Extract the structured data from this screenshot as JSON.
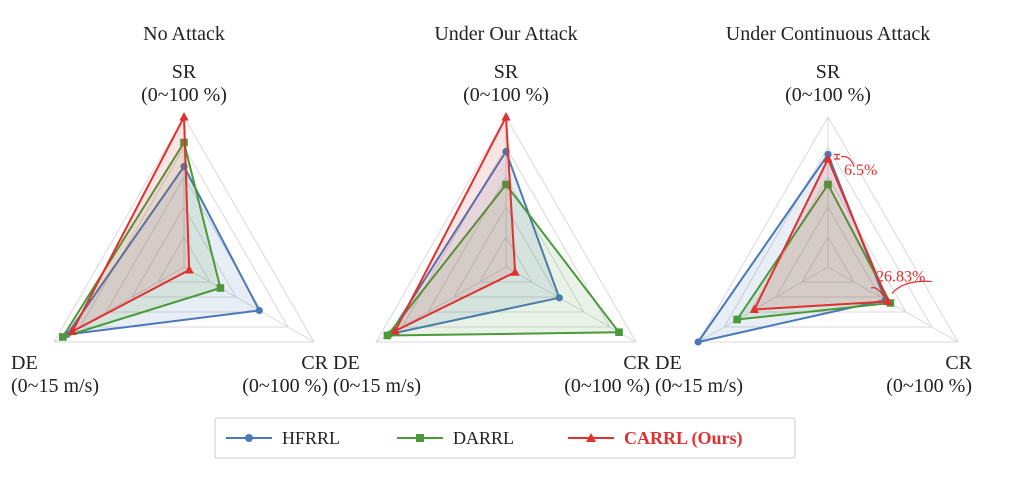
{
  "chart_data": [
    {
      "type": "radar",
      "title": "No Attack",
      "axes": [
        {
          "key": "SR",
          "name": "SR",
          "range_label": "(0~100 %)",
          "range": [
            0,
            100
          ]
        },
        {
          "key": "CR",
          "name": "CR",
          "range_label": "(0~100 %)",
          "range": [
            0,
            100
          ]
        },
        {
          "key": "DE",
          "name": "DE",
          "range_label": "(0~15 m/s)",
          "range": [
            0,
            15
          ]
        }
      ],
      "series": [
        {
          "name": "HFRRL",
          "SR": 67,
          "CR": 58,
          "DE": 13.5
        },
        {
          "name": "DARRL",
          "SR": 83,
          "CR": 28,
          "DE": 14.0
        },
        {
          "name": "CARRL (Ours)",
          "SR": 100,
          "CR": 4,
          "DE": 12.9
        }
      ],
      "annotations": []
    },
    {
      "type": "radar",
      "title": "Under Our Attack",
      "axes": [
        {
          "key": "SR",
          "name": "SR",
          "range_label": "(0~100 %)",
          "range": [
            0,
            100
          ]
        },
        {
          "key": "CR",
          "name": "CR",
          "range_label": "(0~100 %)",
          "range": [
            0,
            100
          ]
        },
        {
          "key": "DE",
          "name": "DE",
          "range_label": "(0~15 m/s)",
          "range": [
            0,
            15
          ]
        }
      ],
      "series": [
        {
          "name": "HFRRL",
          "SR": 77,
          "CR": 41,
          "DE": 13.4
        },
        {
          "name": "DARRL",
          "SR": 55,
          "CR": 87,
          "DE": 13.7
        },
        {
          "name": "CARRL (Ours)",
          "SR": 100,
          "CR": 7,
          "DE": 12.8
        }
      ],
      "annotations": []
    },
    {
      "type": "radar",
      "title": "Under Continuous Attack",
      "axes": [
        {
          "key": "SR",
          "name": "SR",
          "range_label": "(0~100 %)",
          "range": [
            0,
            100
          ]
        },
        {
          "key": "CR",
          "name": "CR",
          "range_label": "(0~100 %)",
          "range": [
            0,
            100
          ]
        },
        {
          "key": "DE",
          "name": "DE",
          "range_label": "(0~15 m/s)",
          "range": [
            0,
            15
          ]
        }
      ],
      "series": [
        {
          "name": "HFRRL",
          "SR": 75,
          "CR": 44,
          "DE": 15.0
        },
        {
          "name": "DARRL",
          "SR": 55,
          "CR": 48,
          "DE": 10.5
        },
        {
          "name": "CARRL (Ours)",
          "SR": 72,
          "CR": 46,
          "DE": 8.5
        }
      ],
      "annotations": [
        "6.5%",
        "26.83%"
      ]
    }
  ],
  "legend": [
    {
      "name": "HFRRL",
      "color": "#4a78b8",
      "marker": "circle",
      "bold": false
    },
    {
      "name": "DARRL",
      "color": "#4a9a3a",
      "marker": "square",
      "bold": false
    },
    {
      "name": "CARRL (Ours)",
      "color": "#e03030",
      "marker": "triangle",
      "bold": true
    }
  ],
  "colors": {
    "HFRRL": "#4a78b8",
    "DARRL": "#4a9a3a",
    "CARRL (Ours)": "#e03030",
    "grid": "#d9d9d9"
  }
}
